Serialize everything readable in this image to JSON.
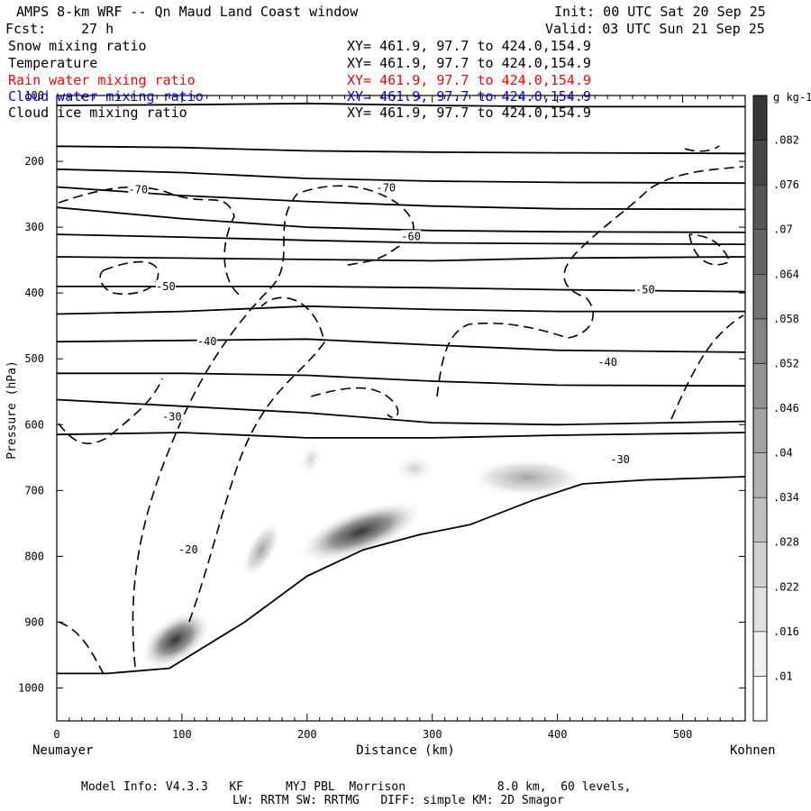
{
  "header": {
    "title": "AMPS 8-km WRF -- Qn Maud Land Coast window",
    "fcst_label": "Fcst:",
    "fcst_value": "27 h",
    "init": "Init: 00 UTC Sat 20 Sep 25",
    "valid": "Valid: 03 UTC Sun 21 Sep 25"
  },
  "fields": [
    {
      "name": "Snow mixing ratio",
      "coords": "XY= 461.9, 97.7 to 424.0,154.9",
      "color": "#000000"
    },
    {
      "name": "Temperature",
      "coords": "XY= 461.9, 97.7 to 424.0,154.9",
      "color": "#000000"
    },
    {
      "name": "Rain water mixing ratio",
      "coords": "XY= 461.9, 97.7 to 424.0,154.9",
      "color": "#ff0000"
    },
    {
      "name": "Cloud water mixing ratio",
      "coords": "XY= 461.9, 97.7 to 424.0,154.9",
      "color": "#0000ff"
    },
    {
      "name": "Cloud ice mixing ratio",
      "coords": "XY= 461.9, 97.7 to 424.0,154.9",
      "color": "#000000"
    }
  ],
  "footer": {
    "line1": "Model Info: V4.3.3   KF      MYJ PBL  Morrison             8.0 km,  60 levels,",
    "line2": "LW: RRTM SW: RRTMG   DIFF: simple KM: 2D Smagor"
  },
  "chart_data": {
    "type": "contour",
    "xlabel": "Distance (km)",
    "ylabel": "Pressure (hPa)",
    "xlim": [
      0,
      550
    ],
    "ylim": [
      1050,
      100
    ],
    "x_ticks": [
      0,
      100,
      200,
      300,
      400,
      500
    ],
    "y_ticks": [
      100,
      200,
      300,
      400,
      500,
      600,
      700,
      800,
      900,
      1000
    ],
    "left_end_label": "Neumayer",
    "right_end_label": "Kohnen",
    "colorbar": {
      "unit": "g kg-1",
      "levels": [
        ".01",
        ".016",
        ".022",
        ".028",
        ".034",
        ".04",
        ".046",
        ".052",
        ".058",
        ".064",
        ".07",
        ".076",
        ".082"
      ]
    },
    "temperature_labels": [
      {
        "text": "-70",
        "x": 65,
        "p": 243
      },
      {
        "text": "-70",
        "x": 263,
        "p": 240
      },
      {
        "text": "-60",
        "x": 283,
        "p": 314
      },
      {
        "text": "-50",
        "x": 87,
        "p": 390
      },
      {
        "text": "-50",
        "x": 470,
        "p": 395
      },
      {
        "text": "-40",
        "x": 120,
        "p": 474
      },
      {
        "text": "-40",
        "x": 440,
        "p": 505
      },
      {
        "text": "-30",
        "x": 92,
        "p": 588
      },
      {
        "text": "-30",
        "x": 450,
        "p": 653
      },
      {
        "text": "-20",
        "x": 105,
        "p": 790
      }
    ],
    "terrain": [
      [
        0,
        978
      ],
      [
        40,
        978
      ],
      [
        90,
        970
      ],
      [
        150,
        900
      ],
      [
        200,
        830
      ],
      [
        245,
        790
      ],
      [
        290,
        767
      ],
      [
        330,
        752
      ],
      [
        380,
        715
      ],
      [
        420,
        690
      ],
      [
        470,
        684
      ],
      [
        550,
        679
      ]
    ],
    "isotherms": [
      [
        [
          0,
          115
        ],
        [
          100,
          114
        ],
        [
          200,
          112
        ],
        [
          300,
          115
        ],
        [
          400,
          117
        ],
        [
          550,
          117
        ]
      ],
      [
        [
          0,
          177
        ],
        [
          100,
          179
        ],
        [
          200,
          184
        ],
        [
          300,
          186
        ],
        [
          400,
          187
        ],
        [
          550,
          188
        ]
      ],
      [
        [
          0,
          212
        ],
        [
          100,
          217
        ],
        [
          200,
          226
        ],
        [
          300,
          230
        ],
        [
          400,
          232
        ],
        [
          550,
          233
        ]
      ],
      [
        [
          0,
          239
        ],
        [
          100,
          252
        ],
        [
          200,
          261
        ],
        [
          300,
          268
        ],
        [
          400,
          272
        ],
        [
          550,
          273
        ]
      ],
      [
        [
          0,
          270
        ],
        [
          100,
          287
        ],
        [
          200,
          300
        ],
        [
          300,
          305
        ],
        [
          400,
          307
        ],
        [
          550,
          308
        ]
      ],
      [
        [
          0,
          311
        ],
        [
          100,
          315
        ],
        [
          200,
          320
        ],
        [
          300,
          324
        ],
        [
          400,
          325
        ],
        [
          550,
          326
        ]
      ],
      [
        [
          0,
          345
        ],
        [
          100,
          347
        ],
        [
          200,
          349
        ],
        [
          300,
          351
        ],
        [
          400,
          347
        ],
        [
          550,
          345
        ]
      ],
      [
        [
          0,
          390
        ],
        [
          100,
          390
        ],
        [
          200,
          390
        ],
        [
          300,
          392
        ],
        [
          400,
          395
        ],
        [
          550,
          398
        ]
      ],
      [
        [
          0,
          432
        ],
        [
          100,
          428
        ],
        [
          200,
          420
        ],
        [
          300,
          425
        ],
        [
          400,
          428
        ],
        [
          550,
          428
        ]
      ],
      [
        [
          0,
          474
        ],
        [
          100,
          472
        ],
        [
          200,
          470
        ],
        [
          300,
          479
        ],
        [
          400,
          487
        ],
        [
          550,
          490
        ]
      ],
      [
        [
          0,
          522
        ],
        [
          100,
          522
        ],
        [
          200,
          525
        ],
        [
          300,
          534
        ],
        [
          400,
          540
        ],
        [
          550,
          541
        ]
      ],
      [
        [
          0,
          562
        ],
        [
          100,
          572
        ],
        [
          200,
          582
        ],
        [
          300,
          597
        ],
        [
          400,
          600
        ],
        [
          550,
          595
        ]
      ],
      [
        [
          0,
          615
        ],
        [
          100,
          612
        ],
        [
          200,
          620
        ],
        [
          300,
          620
        ],
        [
          400,
          616
        ],
        [
          550,
          612
        ]
      ]
    ]
  }
}
